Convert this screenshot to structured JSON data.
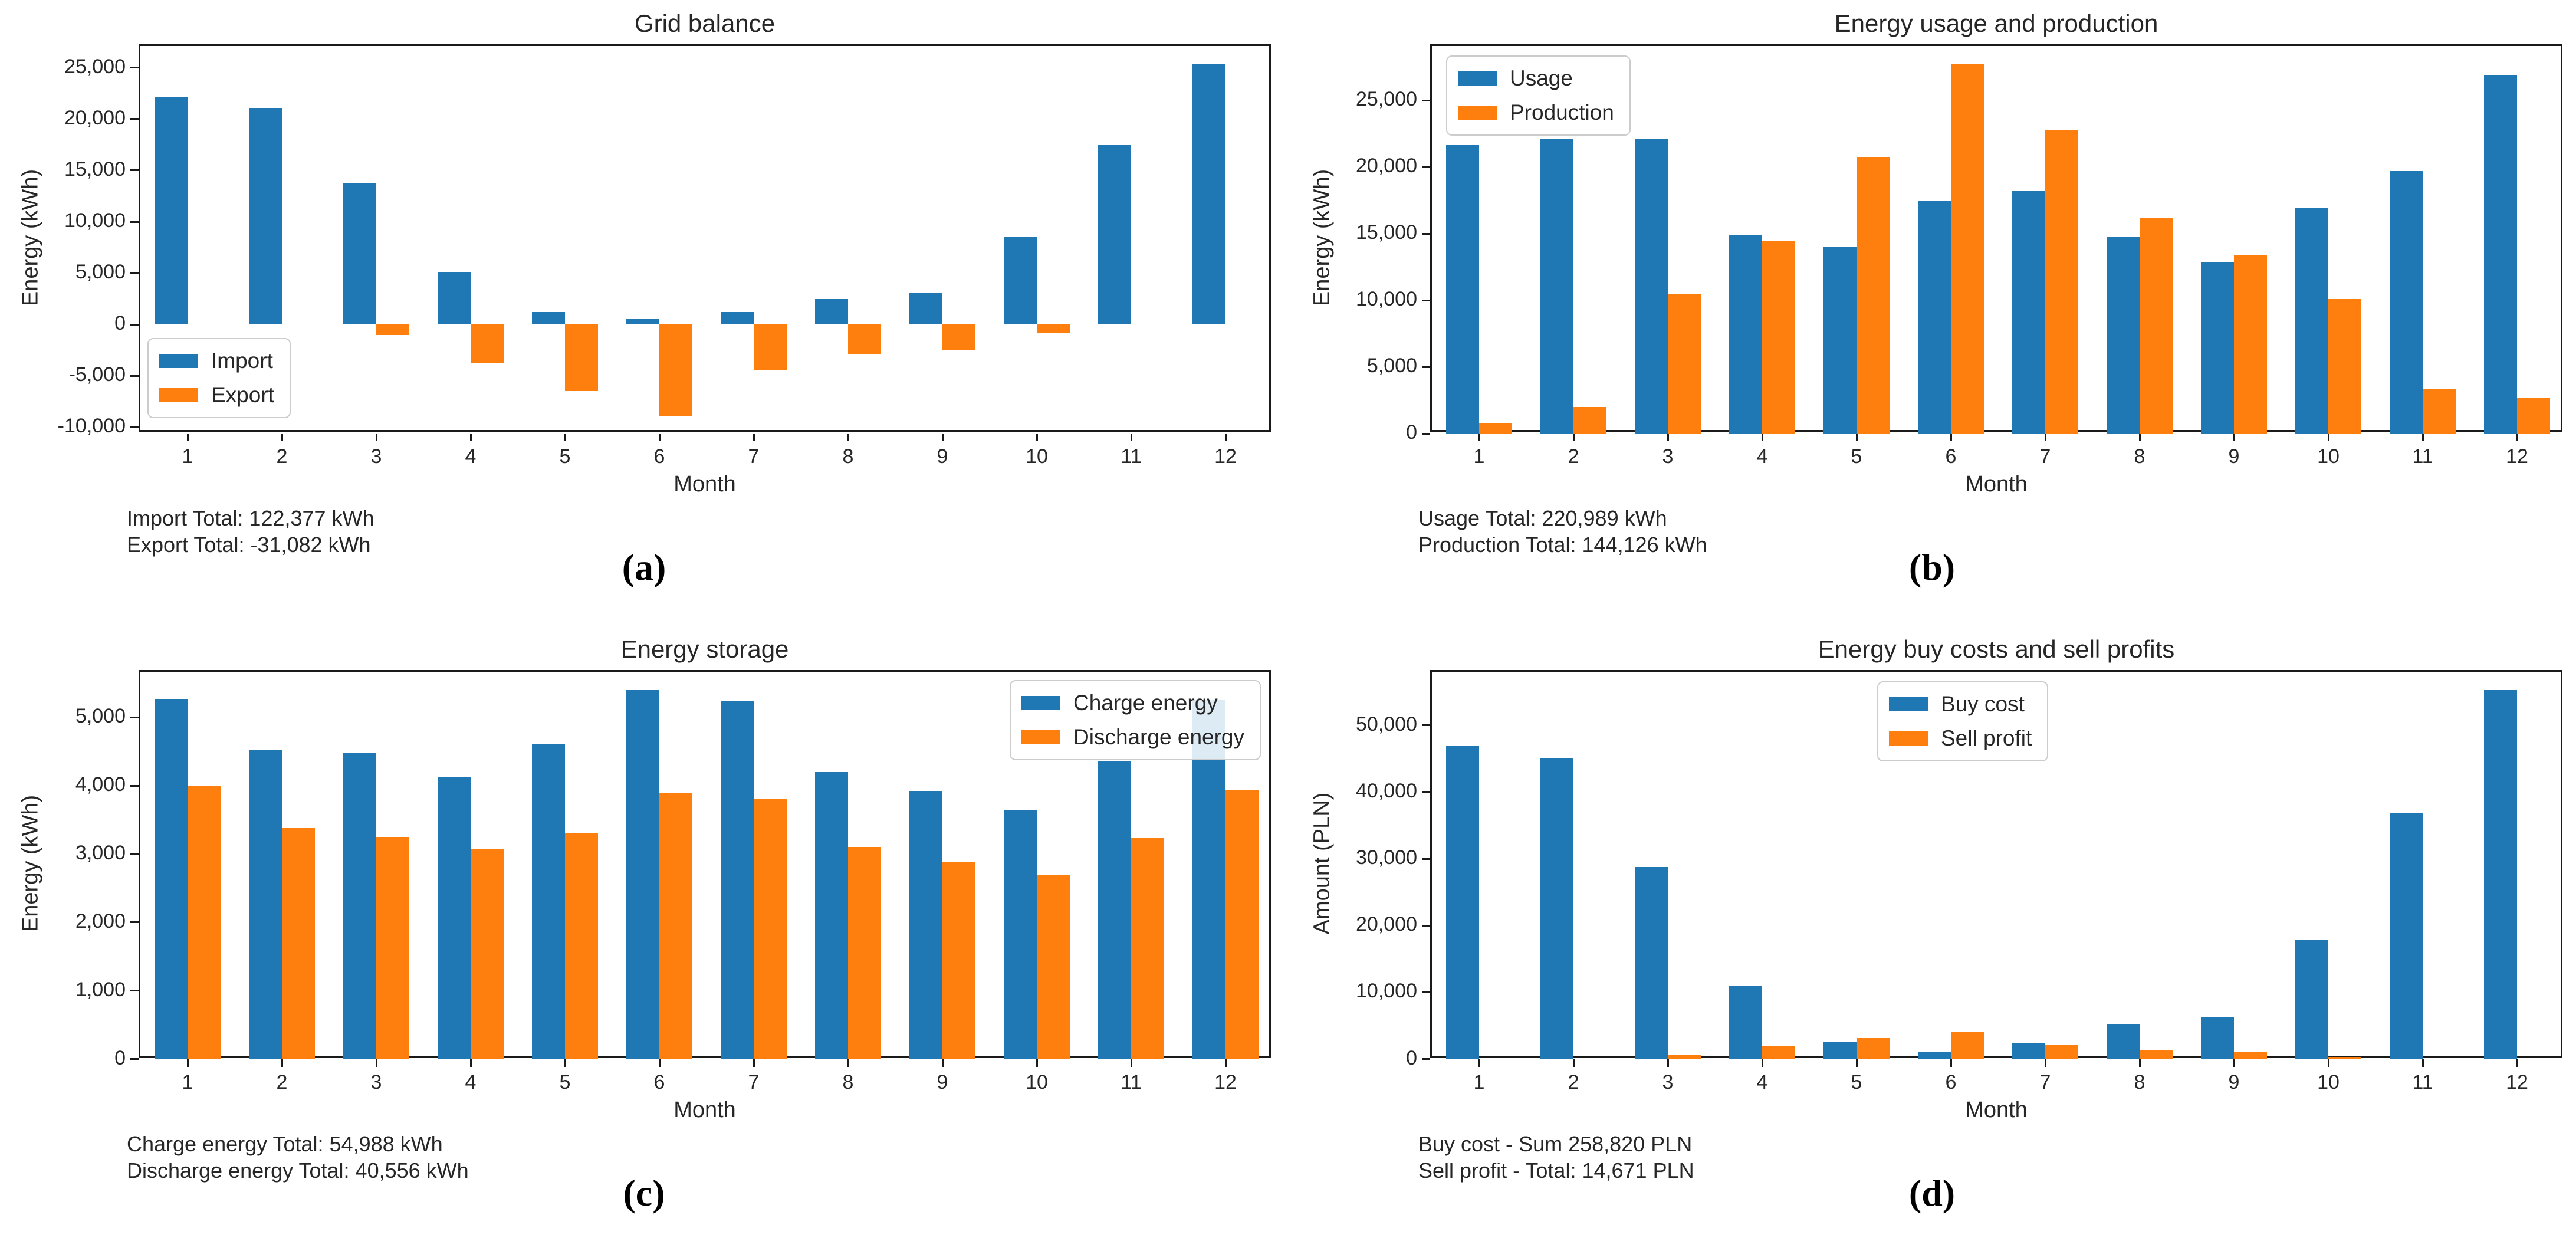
{
  "colors": {
    "series_blue": "#1f77b4",
    "series_orange": "#ff7f0e",
    "axis": "#1a1a1a",
    "text": "#262626"
  },
  "chart_data": [
    {
      "type": "bar",
      "title": "Grid balance",
      "xlabel": "Month",
      "ylabel": "Energy (kWh)",
      "categories": [
        "1",
        "2",
        "3",
        "4",
        "5",
        "6",
        "7",
        "8",
        "9",
        "10",
        "11",
        "12"
      ],
      "series": [
        {
          "name": "Import",
          "color": "#1f77b4",
          "values": [
            22200,
            21100,
            13800,
            5100,
            1200,
            550,
            1200,
            2500,
            3100,
            8500,
            17500,
            25400
          ]
        },
        {
          "name": "Export",
          "color": "#ff7f0e",
          "values": [
            0,
            0,
            -1000,
            -3800,
            -6500,
            -8900,
            -4400,
            -2900,
            -2450,
            -800,
            0,
            0
          ]
        }
      ],
      "ylim": [
        -10615,
        27115
      ],
      "yticks": [
        -10000,
        -5000,
        0,
        5000,
        10000,
        15000,
        20000,
        25000
      ],
      "grid": false,
      "legend_position": "lower left",
      "totals": [
        "Import Total: 122,377 kWh",
        "Export Total: -31,082 kWh"
      ],
      "caption": "(a)"
    },
    {
      "type": "bar",
      "title": "Energy usage and production",
      "xlabel": "Month",
      "ylabel": "Energy (kWh)",
      "categories": [
        "1",
        "2",
        "3",
        "4",
        "5",
        "6",
        "7",
        "8",
        "9",
        "10",
        "11",
        "12"
      ],
      "series": [
        {
          "name": "Usage",
          "color": "#1f77b4",
          "values": [
            21700,
            22100,
            22100,
            14900,
            14000,
            17500,
            18200,
            14800,
            12900,
            16900,
            19700,
            26900
          ]
        },
        {
          "name": "Production",
          "color": "#ff7f0e",
          "values": [
            800,
            2000,
            10500,
            14500,
            20700,
            27700,
            22800,
            16200,
            13400,
            10100,
            3300,
            2700
          ]
        }
      ],
      "ylim": [
        0,
        29090
      ],
      "yticks": [
        0,
        5000,
        10000,
        15000,
        20000,
        25000
      ],
      "grid": false,
      "legend_position": "upper left",
      "totals": [
        "Usage Total: 220,989 kWh",
        "Production Total: 144,126 kWh"
      ],
      "caption": "(b)"
    },
    {
      "type": "bar",
      "title": "Energy storage",
      "xlabel": "Month",
      "ylabel": "Energy (kWh)",
      "categories": [
        "1",
        "2",
        "3",
        "4",
        "5",
        "6",
        "7",
        "8",
        "9",
        "10",
        "11",
        "12"
      ],
      "series": [
        {
          "name": "Charge energy",
          "color": "#1f77b4",
          "values": [
            5270,
            4520,
            4480,
            4120,
            4600,
            5400,
            5230,
            4200,
            3920,
            3650,
            4350,
            5250
          ]
        },
        {
          "name": "Discharge energy",
          "color": "#ff7f0e",
          "values": [
            4000,
            3380,
            3250,
            3070,
            3310,
            3900,
            3800,
            3100,
            2880,
            2700,
            3230,
            3930
          ]
        }
      ],
      "ylim": [
        0,
        5670
      ],
      "yticks": [
        0,
        1000,
        2000,
        3000,
        4000,
        5000
      ],
      "grid": false,
      "legend_position": "upper right",
      "totals": [
        "Charge energy Total: 54,988 kWh",
        "Discharge energy Total: 40,556 kWh"
      ],
      "caption": "(c)"
    },
    {
      "type": "bar",
      "title": "Energy buy costs and sell profits",
      "xlabel": "Month",
      "ylabel": "Amount (PLN)",
      "categories": [
        "1",
        "2",
        "3",
        "4",
        "5",
        "6",
        "7",
        "8",
        "9",
        "10",
        "11",
        "12"
      ],
      "series": [
        {
          "name": "Buy cost",
          "color": "#1f77b4",
          "values": [
            47000,
            45000,
            28800,
            11000,
            2500,
            1000,
            2400,
            5200,
            6300,
            17900,
            36800,
            55300
          ]
        },
        {
          "name": "Sell profit",
          "color": "#ff7f0e",
          "values": [
            0,
            0,
            700,
            2000,
            3100,
            4100,
            2100,
            1400,
            1100,
            350,
            0,
            0
          ]
        }
      ],
      "ylim": [
        0,
        58070
      ],
      "yticks": [
        0,
        10000,
        20000,
        30000,
        40000,
        50000
      ],
      "grid": false,
      "legend_position": "upper center",
      "totals": [
        "Buy cost - Sum 258,820 PLN",
        "Sell profit - Total: 14,671 PLN"
      ],
      "caption": "(d)"
    }
  ]
}
